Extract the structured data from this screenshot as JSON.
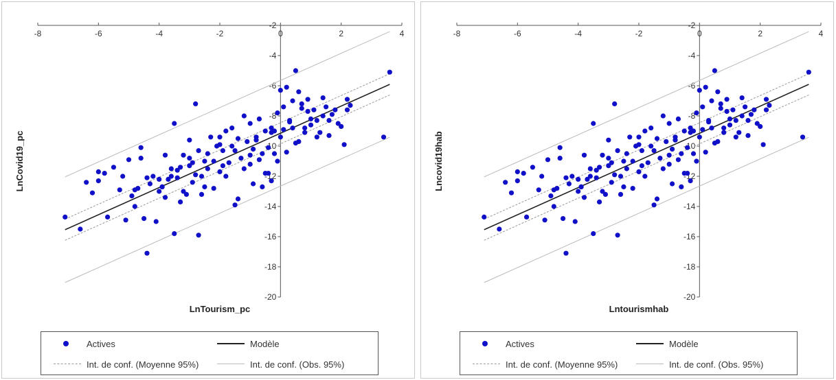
{
  "chart_data": [
    {
      "type": "scatter",
      "xlabel": "LnTourism_pc",
      "ylabel": "LnCovid19_pc",
      "xlim": [
        -8,
        4
      ],
      "ylim": [
        -20,
        -2
      ],
      "xticks": [
        -8,
        -6,
        -4,
        -2,
        0,
        2,
        4
      ],
      "yticks": [
        -2,
        -4,
        -6,
        -8,
        -10,
        -12,
        -14,
        -16,
        -18,
        -20
      ],
      "model": {
        "slope": 0.9,
        "intercept": -9.15
      },
      "conf_mean_halfwidth": 0.7,
      "conf_obs_halfwidth": 3.5,
      "legend": {
        "actives": "Actives",
        "model": "Modèle",
        "conf_mean": "Int. de conf. (Moyenne 95%)",
        "conf_obs": "Int. de conf. (Obs. 95%)"
      },
      "colors": {
        "points": "#1010c8",
        "model": "#222222",
        "conf_mean": "#999999",
        "conf_obs": "#bbbbbb"
      },
      "series": [
        {
          "x": [
            -7.1,
            -6.6,
            -6.2,
            -6.0,
            -5.7,
            -5.5,
            -5.3,
            -5.1,
            -5.0,
            -4.9,
            -4.8,
            -4.7,
            -4.6,
            -4.5,
            -4.4,
            -4.3,
            -4.2,
            -4.1,
            -4.0,
            -3.9,
            -3.8,
            -3.8,
            -3.7,
            -3.6,
            -3.5,
            -3.4,
            -3.3,
            -3.3,
            -3.2,
            -3.1,
            -3.0,
            -3.0,
            -2.9,
            -2.8,
            -2.8,
            -2.7,
            -2.6,
            -2.5,
            -2.5,
            -2.4,
            -2.3,
            -2.2,
            -2.1,
            -2.0,
            -2.0,
            -1.9,
            -1.8,
            -1.7,
            -1.6,
            -1.5,
            -1.4,
            -1.3,
            -1.2,
            -1.1,
            -1.0,
            -1.0,
            -0.9,
            -0.8,
            -0.7,
            -0.6,
            -0.6,
            -0.5,
            -0.4,
            -0.3,
            -0.3,
            -0.2,
            -0.1,
            0.0,
            0.0,
            0.1,
            0.1,
            0.2,
            0.3,
            0.4,
            0.5,
            0.6,
            0.7,
            0.8,
            0.9,
            1.0,
            1.1,
            1.2,
            1.3,
            1.4,
            1.5,
            1.6,
            1.8,
            2.0,
            2.1,
            2.2,
            2.3,
            3.4,
            3.6,
            -6.4,
            -5.8,
            -4.6,
            -4.0,
            -3.6,
            -3.0,
            -2.4,
            -1.6,
            -0.8,
            -0.2,
            0.4,
            1.0,
            1.7,
            -3.9,
            -2.6,
            -1.2,
            0.2,
            -0.5,
            0.8,
            1.4,
            -2.2,
            -0.9,
            -4.4,
            -3.2,
            -1.8,
            0.6,
            1.9,
            -5.2,
            -2.9,
            -1.4,
            -0.1,
            0.9,
            2.2,
            -3.5,
            -1.0,
            0.3,
            -2.0,
            -0.7,
            1.2,
            -4.8,
            -3.4,
            -2.7,
            -1.5,
            -0.4,
            0.5,
            1.6,
            -6.0,
            -1.9,
            -0.3,
            0.7
          ],
          "y": [
            -14.7,
            -15.5,
            -13.1,
            -12.3,
            -14.7,
            -11.4,
            -12.9,
            -14.9,
            -10.9,
            -13.3,
            -12.9,
            -12.8,
            -10.1,
            -14.8,
            -17.1,
            -12.5,
            -12.0,
            -15.0,
            -13.0,
            -12.7,
            -10.6,
            -13.4,
            -12.2,
            -12.0,
            -8.5,
            -12.1,
            -13.7,
            -11.4,
            -10.6,
            -13.2,
            -11.3,
            -9.6,
            -12.4,
            -11.9,
            -7.2,
            -10.3,
            -12.0,
            -12.7,
            -11.0,
            -11.5,
            -9.4,
            -12.8,
            -10.0,
            -11.7,
            -9.4,
            -10.3,
            -9.0,
            -11.1,
            -8.8,
            -10.3,
            -9.5,
            -10.8,
            -8.0,
            -9.7,
            -8.5,
            -11.2,
            -10.2,
            -9.4,
            -8.2,
            -10.5,
            -12.7,
            -9.0,
            -10.1,
            -8.8,
            -12.3,
            -10.5,
            -7.8,
            -6.3,
            -9.4,
            -7.4,
            -8.9,
            -6.1,
            -8.4,
            -7.0,
            -5.0,
            -6.4,
            -7.5,
            -8.8,
            -6.9,
            -8.6,
            -7.6,
            -8.3,
            -9.1,
            -6.8,
            -7.4,
            -9.3,
            -7.6,
            -8.7,
            -9.9,
            -7.6,
            -7.3,
            -9.4,
            -5.1,
            -12.4,
            -11.8,
            -10.8,
            -12.2,
            -11.5,
            -10.8,
            -10.5,
            -10.0,
            -9.6,
            -9.0,
            -8.8,
            -8.2,
            -7.9,
            -12.7,
            -13.2,
            -11.5,
            -10.4,
            -11.8,
            -9.1,
            -8.0,
            -11.0,
            -12.5,
            -12.1,
            -13.0,
            -12.0,
            -9.7,
            -8.5,
            -12.0,
            -11.1,
            -13.5,
            -11.0,
            -7.7,
            -6.9,
            -15.8,
            -10.6,
            -8.3,
            -9.9,
            -10.9,
            -9.4,
            -14.0,
            -11.6,
            -15.9,
            -13.9,
            -11.8,
            -9.8,
            -8.3,
            -11.7,
            -11.3,
            -9.1,
            -7.2
          ]
        }
      ]
    },
    {
      "type": "scatter",
      "xlabel": "Lntourismhab",
      "ylabel": "Lncovid19hab",
      "xlim": [
        -8,
        4
      ],
      "ylim": [
        -20,
        -2
      ],
      "xticks": [
        -8,
        -6,
        -4,
        -2,
        0,
        2,
        4
      ],
      "yticks": [
        -2,
        -4,
        -6,
        -8,
        -10,
        -12,
        -14,
        -16,
        -18,
        -20
      ],
      "model": {
        "slope": 0.9,
        "intercept": -9.15
      },
      "conf_mean_halfwidth": 0.7,
      "conf_obs_halfwidth": 3.5,
      "legend": {
        "actives": "Actives",
        "model": "Modèle",
        "conf_mean": "Int. de conf. (Moyenne 95%)",
        "conf_obs": "Int. de conf. (Obs. 95%)"
      },
      "colors": {
        "points": "#1010c8",
        "model": "#222222",
        "conf_mean": "#999999",
        "conf_obs": "#bbbbbb"
      },
      "series": [
        {
          "x": [
            -7.1,
            -6.6,
            -6.2,
            -6.0,
            -5.7,
            -5.5,
            -5.3,
            -5.1,
            -5.0,
            -4.9,
            -4.8,
            -4.7,
            -4.6,
            -4.5,
            -4.4,
            -4.3,
            -4.2,
            -4.1,
            -4.0,
            -3.9,
            -3.8,
            -3.8,
            -3.7,
            -3.6,
            -3.5,
            -3.4,
            -3.3,
            -3.3,
            -3.2,
            -3.1,
            -3.0,
            -3.0,
            -2.9,
            -2.8,
            -2.8,
            -2.7,
            -2.6,
            -2.5,
            -2.5,
            -2.4,
            -2.3,
            -2.2,
            -2.1,
            -2.0,
            -2.0,
            -1.9,
            -1.8,
            -1.7,
            -1.6,
            -1.5,
            -1.4,
            -1.3,
            -1.2,
            -1.1,
            -1.0,
            -1.0,
            -0.9,
            -0.8,
            -0.7,
            -0.6,
            -0.6,
            -0.5,
            -0.4,
            -0.3,
            -0.3,
            -0.2,
            -0.1,
            0.0,
            0.0,
            0.1,
            0.1,
            0.2,
            0.3,
            0.4,
            0.5,
            0.6,
            0.7,
            0.8,
            0.9,
            1.0,
            1.1,
            1.2,
            1.3,
            1.4,
            1.5,
            1.6,
            1.8,
            2.0,
            2.1,
            2.2,
            2.3,
            3.4,
            3.6,
            -6.4,
            -5.8,
            -4.6,
            -4.0,
            -3.6,
            -3.0,
            -2.4,
            -1.6,
            -0.8,
            -0.2,
            0.4,
            1.0,
            1.7,
            -3.9,
            -2.6,
            -1.2,
            0.2,
            -0.5,
            0.8,
            1.4,
            -2.2,
            -0.9,
            -4.4,
            -3.2,
            -1.8,
            0.6,
            1.9,
            -5.2,
            -2.9,
            -1.4,
            -0.1,
            0.9,
            2.2,
            -3.5,
            -1.0,
            0.3,
            -2.0,
            -0.7,
            1.2,
            -4.8,
            -3.4,
            -2.7,
            -1.5,
            -0.4,
            0.5,
            1.6,
            -6.0,
            -1.9,
            -0.3,
            0.7
          ],
          "y": [
            -14.7,
            -15.5,
            -13.1,
            -12.3,
            -14.7,
            -11.4,
            -12.9,
            -14.9,
            -10.9,
            -13.3,
            -12.9,
            -12.8,
            -10.1,
            -14.8,
            -17.1,
            -12.5,
            -12.0,
            -15.0,
            -13.0,
            -12.7,
            -10.6,
            -13.4,
            -12.2,
            -12.0,
            -8.5,
            -12.1,
            -13.7,
            -11.4,
            -10.6,
            -13.2,
            -11.3,
            -9.6,
            -12.4,
            -11.9,
            -7.2,
            -10.3,
            -12.0,
            -12.7,
            -11.0,
            -11.5,
            -9.4,
            -12.8,
            -10.0,
            -11.7,
            -9.4,
            -10.3,
            -9.0,
            -11.1,
            -8.8,
            -10.3,
            -9.5,
            -10.8,
            -8.0,
            -9.7,
            -8.5,
            -11.2,
            -10.2,
            -9.4,
            -8.2,
            -10.5,
            -12.7,
            -9.0,
            -10.1,
            -8.8,
            -12.3,
            -10.5,
            -7.8,
            -6.3,
            -9.4,
            -7.4,
            -8.9,
            -6.1,
            -8.4,
            -7.0,
            -5.0,
            -6.4,
            -7.5,
            -8.8,
            -6.9,
            -8.6,
            -7.6,
            -8.3,
            -9.1,
            -6.8,
            -7.4,
            -9.3,
            -7.6,
            -8.7,
            -9.9,
            -7.6,
            -7.3,
            -9.4,
            -5.1,
            -12.4,
            -11.8,
            -10.8,
            -12.2,
            -11.5,
            -10.8,
            -10.5,
            -10.0,
            -9.6,
            -9.0,
            -8.8,
            -8.2,
            -7.9,
            -12.7,
            -13.2,
            -11.5,
            -10.4,
            -11.8,
            -9.1,
            -8.0,
            -11.0,
            -12.5,
            -12.1,
            -13.0,
            -12.0,
            -9.7,
            -8.5,
            -12.0,
            -11.1,
            -13.5,
            -11.0,
            -7.7,
            -6.9,
            -15.8,
            -10.6,
            -8.3,
            -9.9,
            -10.9,
            -9.4,
            -14.0,
            -11.6,
            -15.9,
            -13.9,
            -11.8,
            -9.8,
            -8.3,
            -11.7,
            -11.3,
            -9.1,
            -7.2
          ]
        }
      ]
    }
  ]
}
